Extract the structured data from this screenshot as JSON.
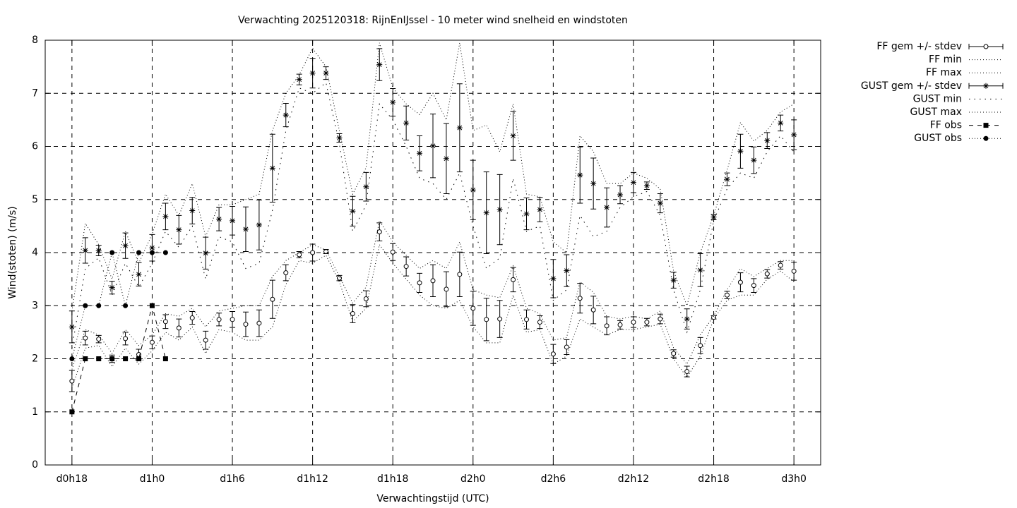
{
  "chart_data": {
    "type": "errorbar-line",
    "title": "Verwachting 2025120318: RijnEnIJssel - 10 meter wind snelheid en windstoten",
    "x_label": "Verwachtingstijd (UTC)",
    "y_label": "Wind(stoten) (m/s)",
    "x": [
      0,
      1,
      2,
      3,
      4,
      5,
      6,
      7,
      8,
      9,
      10,
      11,
      12,
      13,
      14,
      15,
      16,
      17,
      18,
      19,
      20,
      21,
      22,
      23,
      24,
      25,
      26,
      27,
      28,
      29,
      30,
      31,
      32,
      33,
      34,
      35,
      36,
      37,
      38,
      39,
      40,
      41,
      42,
      43,
      44,
      45,
      46,
      47,
      48,
      49,
      50,
      51,
      52,
      53,
      54
    ],
    "xlim": [
      -2,
      56
    ],
    "xticks": [
      {
        "value": 0,
        "label": "d0h18"
      },
      {
        "value": 6,
        "label": "d1h0"
      },
      {
        "value": 12,
        "label": "d1h6"
      },
      {
        "value": 18,
        "label": "d1h12"
      },
      {
        "value": 24,
        "label": "d1h18"
      },
      {
        "value": 30,
        "label": "d2h0"
      },
      {
        "value": 36,
        "label": "d2h6"
      },
      {
        "value": 42,
        "label": "d2h12"
      },
      {
        "value": 48,
        "label": "d2h18"
      },
      {
        "value": 54,
        "label": "d3h0"
      }
    ],
    "ylim": [
      0,
      8
    ],
    "yticks": [
      0,
      1,
      2,
      3,
      4,
      5,
      6,
      7,
      8
    ],
    "grid": true,
    "legend": "outside-right",
    "series": [
      {
        "name": "FF gem +/- stdev",
        "color": "#000000",
        "style": "errorbar",
        "marker": "circle",
        "values": [
          1.58,
          2.39,
          2.37,
          2.0,
          2.38,
          2.08,
          2.31,
          2.7,
          2.58,
          2.77,
          2.35,
          2.74,
          2.74,
          2.65,
          2.67,
          3.12,
          3.62,
          3.96,
          4.0,
          4.02,
          3.52,
          2.85,
          3.13,
          4.39,
          4.01,
          3.74,
          3.43,
          3.47,
          3.31,
          3.59,
          2.95,
          2.74,
          2.75,
          3.49,
          2.74,
          2.69,
          2.09,
          2.22,
          3.14,
          2.92,
          2.62,
          2.64,
          2.69,
          2.69,
          2.75,
          2.1,
          1.76,
          2.25,
          2.78,
          3.2,
          3.44,
          3.38,
          3.6,
          3.76,
          3.65
        ],
        "errors": [
          0.2,
          0.13,
          0.07,
          0.07,
          0.12,
          0.1,
          0.12,
          0.13,
          0.17,
          0.12,
          0.17,
          0.12,
          0.15,
          0.23,
          0.25,
          0.36,
          0.15,
          0.06,
          0.16,
          0.04,
          0.05,
          0.17,
          0.15,
          0.17,
          0.16,
          0.18,
          0.18,
          0.3,
          0.33,
          0.42,
          0.32,
          0.4,
          0.35,
          0.23,
          0.18,
          0.12,
          0.18,
          0.14,
          0.28,
          0.26,
          0.17,
          0.08,
          0.1,
          0.07,
          0.09,
          0.07,
          0.1,
          0.15,
          0.03,
          0.07,
          0.18,
          0.13,
          0.08,
          0.07,
          0.17
        ]
      },
      {
        "name": "FF min",
        "color": "#000000",
        "style": "line",
        "dash": "dotted",
        "values": [
          1.45,
          2.2,
          2.25,
          1.85,
          2.2,
          1.9,
          2.15,
          2.5,
          2.35,
          2.6,
          2.1,
          2.55,
          2.5,
          2.35,
          2.35,
          2.6,
          3.4,
          3.85,
          3.8,
          3.95,
          3.45,
          2.7,
          2.95,
          4.15,
          3.8,
          3.5,
          3.2,
          3.0,
          2.95,
          3.1,
          2.6,
          2.3,
          2.3,
          3.2,
          2.5,
          2.55,
          1.9,
          2.05,
          2.75,
          2.6,
          2.45,
          2.55,
          2.55,
          2.6,
          2.65,
          2.0,
          1.65,
          2.05,
          2.75,
          3.1,
          3.2,
          3.2,
          3.5,
          3.65,
          3.45
        ]
      },
      {
        "name": "FF max",
        "color": "#000000",
        "style": "line",
        "dash": "dotted",
        "values": [
          1.8,
          2.55,
          2.45,
          2.1,
          2.55,
          2.25,
          2.45,
          2.85,
          2.8,
          2.95,
          2.6,
          2.9,
          2.95,
          3.0,
          3.0,
          3.55,
          3.85,
          4.0,
          4.15,
          4.05,
          3.55,
          3.05,
          3.35,
          4.6,
          4.2,
          3.95,
          3.7,
          3.85,
          3.7,
          4.2,
          3.3,
          3.2,
          3.15,
          3.75,
          2.95,
          2.85,
          2.35,
          2.4,
          3.45,
          3.25,
          2.8,
          2.75,
          2.8,
          2.75,
          2.9,
          2.2,
          1.9,
          2.45,
          2.8,
          3.3,
          3.7,
          3.55,
          3.7,
          3.85,
          3.85
        ]
      },
      {
        "name": "GUST gem +/- stdev",
        "color": "#000000",
        "style": "errorbar",
        "marker": "star",
        "values": [
          2.6,
          4.04,
          4.04,
          3.34,
          4.13,
          3.59,
          4.09,
          4.68,
          4.43,
          4.79,
          3.99,
          4.63,
          4.6,
          4.44,
          4.52,
          5.59,
          6.59,
          7.26,
          7.38,
          7.38,
          6.16,
          4.78,
          5.24,
          7.54,
          6.83,
          6.44,
          5.87,
          6.01,
          5.77,
          6.35,
          5.18,
          4.75,
          4.81,
          6.2,
          4.73,
          4.81,
          3.51,
          3.66,
          5.46,
          5.3,
          4.85,
          5.09,
          5.32,
          5.26,
          4.93,
          3.48,
          2.75,
          3.67,
          4.67,
          5.38,
          5.91,
          5.74,
          6.11,
          6.44,
          6.22
        ],
        "errors": [
          0.3,
          0.24,
          0.1,
          0.12,
          0.24,
          0.22,
          0.25,
          0.25,
          0.27,
          0.25,
          0.3,
          0.22,
          0.27,
          0.42,
          0.47,
          0.64,
          0.22,
          0.1,
          0.28,
          0.12,
          0.08,
          0.28,
          0.27,
          0.3,
          0.26,
          0.32,
          0.33,
          0.6,
          0.66,
          0.83,
          0.56,
          0.77,
          0.66,
          0.46,
          0.3,
          0.23,
          0.36,
          0.3,
          0.53,
          0.48,
          0.37,
          0.17,
          0.19,
          0.07,
          0.18,
          0.15,
          0.19,
          0.31,
          0.05,
          0.12,
          0.32,
          0.25,
          0.15,
          0.15,
          0.28
        ]
      },
      {
        "name": "GUST min",
        "color": "#000000",
        "style": "line",
        "dash": "sparse-dotted",
        "values": [
          2.2,
          3.7,
          3.9,
          3.2,
          3.8,
          3.35,
          3.8,
          4.4,
          4.1,
          4.5,
          3.5,
          4.3,
          4.2,
          3.7,
          3.8,
          4.8,
          6.3,
          7.1,
          7.0,
          7.2,
          6.05,
          4.4,
          4.9,
          6.8,
          6.5,
          6.0,
          5.4,
          5.3,
          5.0,
          5.5,
          4.5,
          3.7,
          3.9,
          5.4,
          4.4,
          4.5,
          3.1,
          3.3,
          4.7,
          4.3,
          4.4,
          4.85,
          5.05,
          5.15,
          4.7,
          3.3,
          2.5,
          3.3,
          4.6,
          5.2,
          5.5,
          5.4,
          5.9,
          6.2,
          5.9
        ]
      },
      {
        "name": "GUST max",
        "color": "#000000",
        "style": "line",
        "dash": "dotted",
        "values": [
          2.9,
          4.55,
          4.15,
          3.5,
          4.4,
          3.8,
          4.35,
          5.1,
          4.7,
          5.3,
          4.3,
          4.9,
          4.9,
          5.0,
          5.1,
          6.3,
          7.0,
          7.35,
          7.85,
          7.5,
          6.3,
          5.1,
          5.6,
          7.95,
          7.1,
          6.8,
          6.6,
          7.0,
          6.5,
          7.95,
          6.3,
          6.4,
          5.9,
          6.8,
          5.1,
          5.05,
          4.2,
          4.0,
          6.2,
          5.9,
          5.3,
          5.3,
          5.5,
          5.4,
          5.2,
          3.65,
          3.0,
          4.0,
          4.7,
          5.55,
          6.45,
          6.1,
          6.3,
          6.65,
          6.8
        ]
      },
      {
        "name": "FF obs",
        "color": "#000000",
        "style": "points",
        "marker": "square",
        "dash": "dashed",
        "values": [
          1,
          2,
          2,
          2,
          2,
          2,
          3,
          2,
          null,
          null,
          null,
          null,
          null,
          null,
          null,
          null,
          null,
          null,
          null,
          null,
          null,
          null,
          null,
          null,
          null,
          null,
          null,
          null,
          null,
          null,
          null,
          null,
          null,
          null,
          null,
          null,
          null,
          null,
          null,
          null,
          null,
          null,
          null,
          null,
          null,
          null,
          null,
          null,
          null,
          null,
          null,
          null,
          null,
          null,
          null
        ]
      },
      {
        "name": "GUST obs",
        "color": "#000000",
        "style": "points",
        "marker": "dot",
        "dash": "dotted",
        "values": [
          2,
          3,
          3,
          4,
          3,
          4,
          4,
          4,
          null,
          null,
          null,
          null,
          null,
          null,
          null,
          null,
          null,
          null,
          null,
          null,
          null,
          null,
          null,
          null,
          null,
          null,
          null,
          null,
          null,
          null,
          null,
          null,
          null,
          null,
          null,
          null,
          null,
          null,
          null,
          null,
          null,
          null,
          null,
          null,
          null,
          null,
          null,
          null,
          null,
          null,
          null,
          null,
          null,
          null,
          null
        ]
      }
    ]
  }
}
